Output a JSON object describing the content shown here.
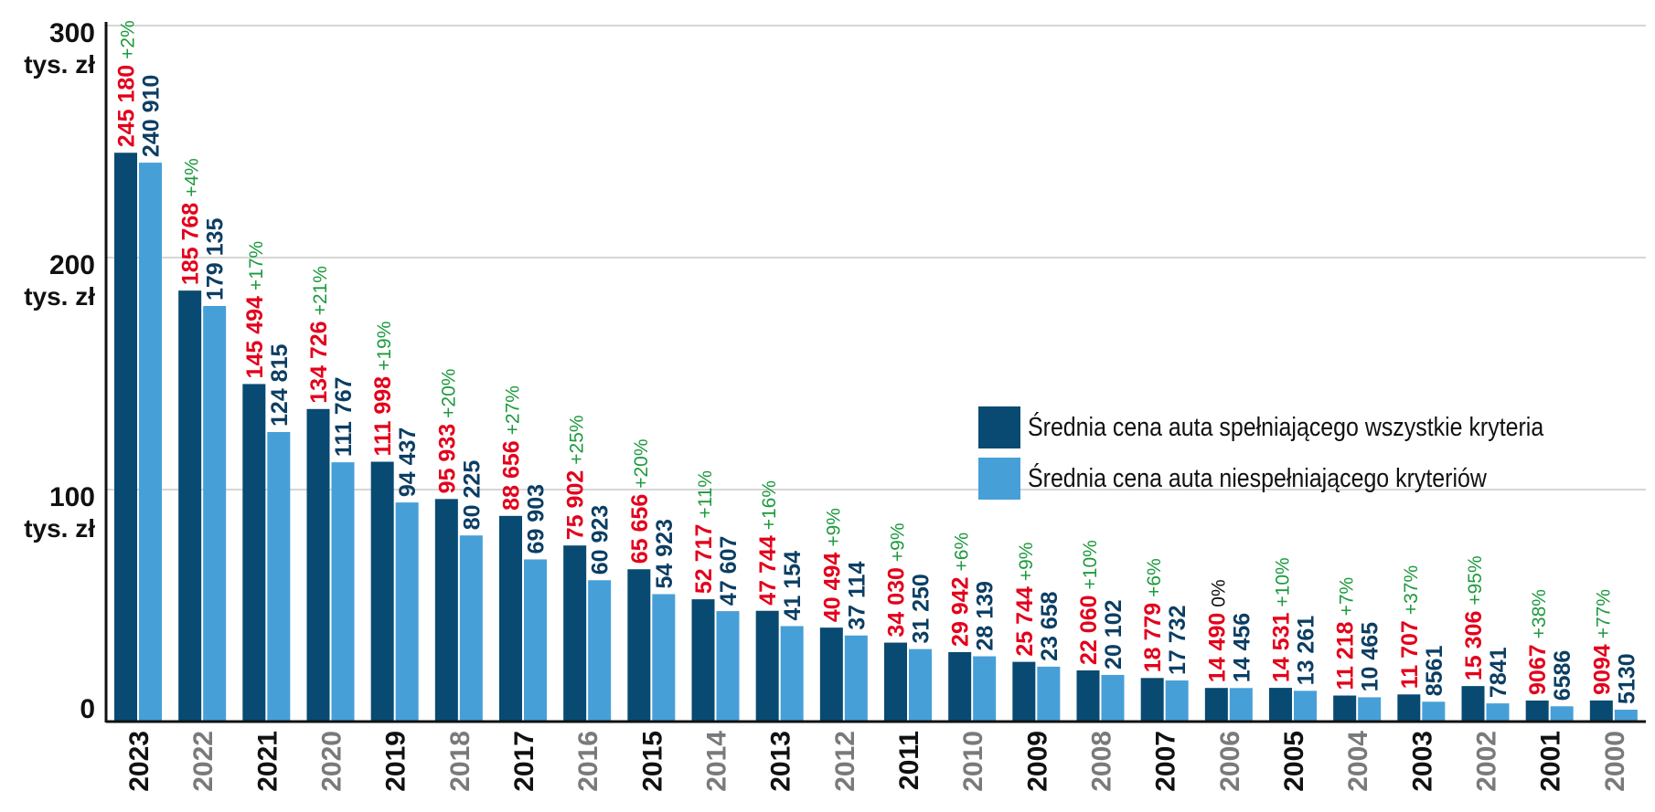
{
  "chart_data": {
    "type": "bar",
    "title": "",
    "xlabel": "",
    "ylabel": "",
    "ylim": [
      0,
      300000
    ],
    "grid": true,
    "y_ticks": [
      {
        "value": 300000,
        "label": "300",
        "unit": "tys. zł"
      },
      {
        "value": 200000,
        "label": "200",
        "unit": "tys. zł"
      },
      {
        "value": 100000,
        "label": "100",
        "unit": "tys. zł"
      },
      {
        "value": 0,
        "label": "0",
        "unit": ""
      }
    ],
    "categories": [
      "2023",
      "2022",
      "2021",
      "2020",
      "2019",
      "2018",
      "2017",
      "2016",
      "2015",
      "2014",
      "2013",
      "2012",
      "2011",
      "2010",
      "2009",
      "2008",
      "2007",
      "2006",
      "2005",
      "2004",
      "2003",
      "2002",
      "2001",
      "2000"
    ],
    "series": [
      {
        "name": "Średnia cena auta spełniającego wszystkie kryteria",
        "color": "#084a72",
        "values": [
          245180,
          185768,
          145494,
          134726,
          111998,
          95933,
          88656,
          75902,
          65656,
          52717,
          47744,
          40494,
          34030,
          29942,
          25744,
          22060,
          18779,
          14490,
          14531,
          11218,
          11707,
          15306,
          9067,
          9094
        ],
        "labels": [
          "245 180",
          "185 768",
          "145 494",
          "134 726",
          "111 998",
          "95 933",
          "88 656",
          "75 902",
          "65 656",
          "52 717",
          "47 744",
          "40 494",
          "34 030",
          "29 942",
          "25 744",
          "22 060",
          "18 779",
          "14 490",
          "14 531",
          "11 218",
          "11 707",
          "15 306",
          "9067",
          "9094"
        ]
      },
      {
        "name": "Średnia cena auta niespełniającego kryteriów",
        "color": "#479fd8",
        "values": [
          240910,
          179135,
          124815,
          111767,
          94437,
          80225,
          69903,
          60923,
          54923,
          47607,
          41154,
          37114,
          31250,
          28139,
          23658,
          20102,
          17732,
          14456,
          13261,
          10465,
          8561,
          7841,
          6586,
          5130
        ],
        "labels": [
          "240 910",
          "179 135",
          "124 815",
          "111 767",
          "94 437",
          "80 225",
          "69 903",
          "60 923",
          "54 923",
          "47 607",
          "41 154",
          "37 114",
          "31 250",
          "28 139",
          "23 658",
          "20 102",
          "17 732",
          "14 456",
          "13 261",
          "10 465",
          "8561",
          "7841",
          "6586",
          "5130"
        ]
      }
    ],
    "annotations": {
      "percent_diff": [
        "+2%",
        "+4%",
        "+17%",
        "+21%",
        "+19%",
        "+20%",
        "+27%",
        "+25%",
        "+20%",
        "+11%",
        "+16%",
        "+9%",
        "+9%",
        "+6%",
        "+9%",
        "+10%",
        "+6%",
        "0%",
        "+10%",
        "+7%",
        "+37%",
        "+95%",
        "+38%",
        "+77%"
      ]
    },
    "legend_position": "center-right",
    "colors": {
      "label_red": "#e3001b",
      "label_navy": "#0c3e63",
      "percent_green": "#1d9a3e",
      "percent_zero": "#111111",
      "year_dark": "#111111",
      "year_gray": "#7a7a7a",
      "grid": "#c8c8c8",
      "axis": "#111111"
    }
  }
}
